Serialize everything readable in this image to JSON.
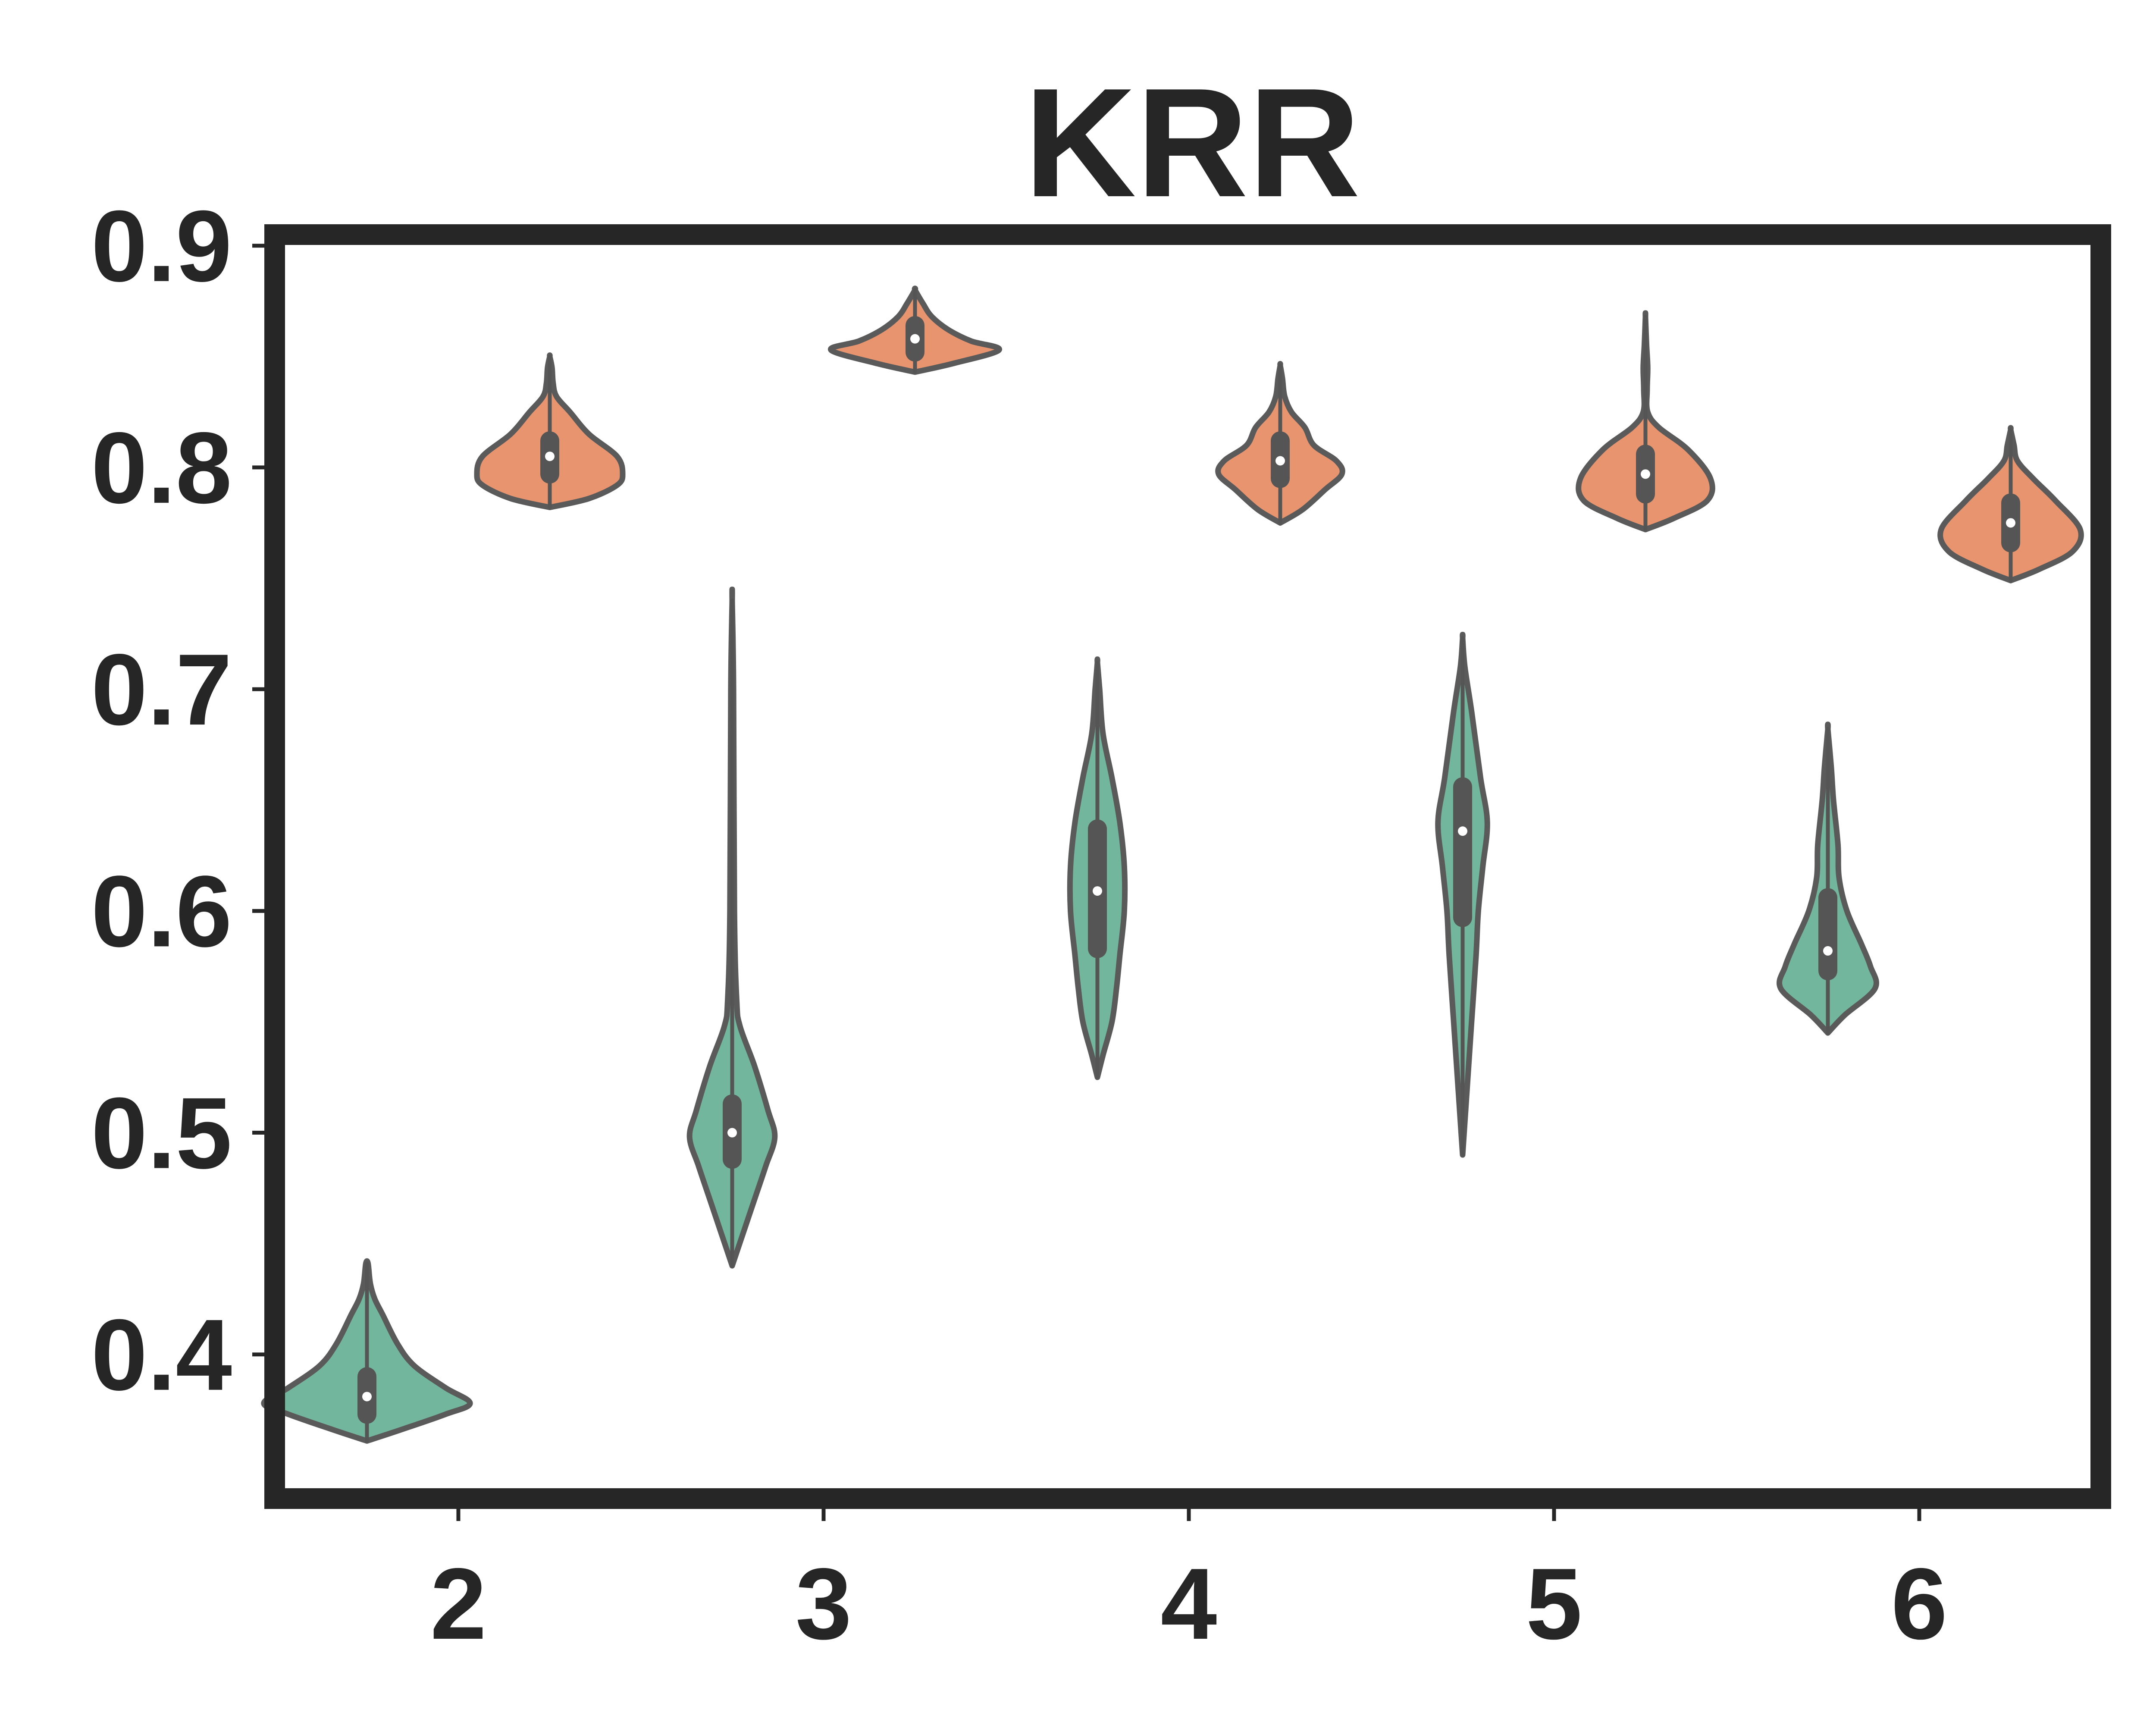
{
  "chart_data": {
    "type": "violin",
    "title": "KRR",
    "xlabel": "",
    "ylabel": "",
    "categories": [
      "2",
      "3",
      "4",
      "5",
      "6"
    ],
    "yticks": [
      "0.4",
      "0.5",
      "0.6",
      "0.7",
      "0.8",
      "0.9"
    ],
    "ylim": [
      0.335,
      0.905
    ],
    "grid": false,
    "legend": "none",
    "colors": {
      "series_a": "#72b69e",
      "series_b": "#e8956f"
    },
    "series": [
      {
        "color_key": "series_a",
        "violins": [
          {
            "category": "2",
            "min": 0.361,
            "q1": 0.373,
            "median": 0.381,
            "q3": 0.39,
            "max": 0.441,
            "profile": [
              [
                0.361,
                0.0
              ],
              [
                0.366,
                0.3
              ],
              [
                0.373,
                0.7
              ],
              [
                0.378,
                0.92
              ],
              [
                0.385,
                0.7
              ],
              [
                0.395,
                0.42
              ],
              [
                0.405,
                0.27
              ],
              [
                0.418,
                0.14
              ],
              [
                0.425,
                0.07
              ],
              [
                0.432,
                0.03
              ],
              [
                0.441,
                0.01
              ]
            ]
          },
          {
            "category": "3",
            "min": 0.44,
            "q1": 0.488,
            "median": 0.5,
            "q3": 0.513,
            "max": 0.74,
            "profile": [
              [
                0.44,
                0.0
              ],
              [
                0.455,
                0.1
              ],
              [
                0.47,
                0.2
              ],
              [
                0.485,
                0.3
              ],
              [
                0.498,
                0.38
              ],
              [
                0.51,
                0.32
              ],
              [
                0.53,
                0.2
              ],
              [
                0.548,
                0.07
              ],
              [
                0.56,
                0.04
              ],
              [
                0.6,
                0.02
              ],
              [
                0.7,
                0.012
              ],
              [
                0.74,
                0.0
              ]
            ]
          },
          {
            "category": "4",
            "min": 0.525,
            "q1": 0.583,
            "median": 0.609,
            "q3": 0.637,
            "max": 0.712,
            "profile": [
              [
                0.525,
                0.0
              ],
              [
                0.535,
                0.05
              ],
              [
                0.55,
                0.13
              ],
              [
                0.565,
                0.17
              ],
              [
                0.58,
                0.2
              ],
              [
                0.6,
                0.24
              ],
              [
                0.62,
                0.24
              ],
              [
                0.64,
                0.2
              ],
              [
                0.66,
                0.13
              ],
              [
                0.68,
                0.05
              ],
              [
                0.7,
                0.02
              ],
              [
                0.712,
                0.0
              ]
            ]
          },
          {
            "category": "5",
            "min": 0.49,
            "q1": 0.597,
            "median": 0.636,
            "q3": 0.656,
            "max": 0.723,
            "profile": [
              [
                0.49,
                0.0
              ],
              [
                0.52,
                0.04
              ],
              [
                0.55,
                0.08
              ],
              [
                0.58,
                0.12
              ],
              [
                0.6,
                0.14
              ],
              [
                0.62,
                0.18
              ],
              [
                0.64,
                0.22
              ],
              [
                0.66,
                0.16
              ],
              [
                0.69,
                0.08
              ],
              [
                0.71,
                0.02
              ],
              [
                0.723,
                0.0
              ]
            ]
          },
          {
            "category": "6",
            "min": 0.545,
            "q1": 0.573,
            "median": 0.582,
            "q3": 0.606,
            "max": 0.682,
            "profile": [
              [
                0.545,
                0.0
              ],
              [
                0.553,
                0.15
              ],
              [
                0.565,
                0.42
              ],
              [
                0.575,
                0.38
              ],
              [
                0.585,
                0.3
              ],
              [
                0.6,
                0.17
              ],
              [
                0.615,
                0.1
              ],
              [
                0.63,
                0.09
              ],
              [
                0.65,
                0.05
              ],
              [
                0.665,
                0.03
              ],
              [
                0.682,
                0.0
              ]
            ]
          }
        ]
      },
      {
        "color_key": "series_b",
        "violins": [
          {
            "category": "2",
            "min": 0.782,
            "q1": 0.797,
            "median": 0.805,
            "q3": 0.812,
            "max": 0.85,
            "profile": [
              [
                0.782,
                0.0
              ],
              [
                0.786,
                0.35
              ],
              [
                0.792,
                0.6
              ],
              [
                0.797,
                0.65
              ],
              [
                0.805,
                0.6
              ],
              [
                0.815,
                0.35
              ],
              [
                0.825,
                0.18
              ],
              [
                0.832,
                0.06
              ],
              [
                0.838,
                0.03
              ],
              [
                0.845,
                0.02
              ],
              [
                0.85,
                0.0
              ]
            ]
          },
          {
            "category": "3",
            "min": 0.843,
            "q1": 0.852,
            "median": 0.858,
            "q3": 0.864,
            "max": 0.88,
            "profile": [
              [
                0.843,
                0.0
              ],
              [
                0.847,
                0.35
              ],
              [
                0.853,
                0.75
              ],
              [
                0.857,
                0.5
              ],
              [
                0.862,
                0.3
              ],
              [
                0.868,
                0.15
              ],
              [
                0.874,
                0.07
              ],
              [
                0.88,
                0.0
              ]
            ]
          },
          {
            "category": "4",
            "min": 0.775,
            "q1": 0.795,
            "median": 0.803,
            "q3": 0.812,
            "max": 0.846,
            "profile": [
              [
                0.775,
                0.0
              ],
              [
                0.781,
                0.2
              ],
              [
                0.79,
                0.4
              ],
              [
                0.797,
                0.55
              ],
              [
                0.803,
                0.5
              ],
              [
                0.81,
                0.3
              ],
              [
                0.818,
                0.22
              ],
              [
                0.825,
                0.1
              ],
              [
                0.832,
                0.04
              ],
              [
                0.84,
                0.02
              ],
              [
                0.846,
                0.0
              ]
            ]
          },
          {
            "category": "5",
            "min": 0.772,
            "q1": 0.788,
            "median": 0.797,
            "q3": 0.806,
            "max": 0.868,
            "profile": [
              [
                0.772,
                0.0
              ],
              [
                0.777,
                0.25
              ],
              [
                0.785,
                0.55
              ],
              [
                0.795,
                0.58
              ],
              [
                0.808,
                0.38
              ],
              [
                0.818,
                0.12
              ],
              [
                0.825,
                0.02
              ],
              [
                0.835,
                0.015
              ],
              [
                0.845,
                0.02
              ],
              [
                0.855,
                0.01
              ],
              [
                0.868,
                0.0
              ]
            ]
          },
          {
            "category": "6",
            "min": 0.749,
            "q1": 0.766,
            "median": 0.775,
            "q3": 0.784,
            "max": 0.817,
            "profile": [
              [
                0.749,
                0.0
              ],
              [
                0.754,
                0.25
              ],
              [
                0.762,
                0.55
              ],
              [
                0.772,
                0.62
              ],
              [
                0.785,
                0.4
              ],
              [
                0.795,
                0.2
              ],
              [
                0.803,
                0.06
              ],
              [
                0.81,
                0.03
              ],
              [
                0.817,
                0.0
              ]
            ]
          }
        ]
      }
    ]
  }
}
